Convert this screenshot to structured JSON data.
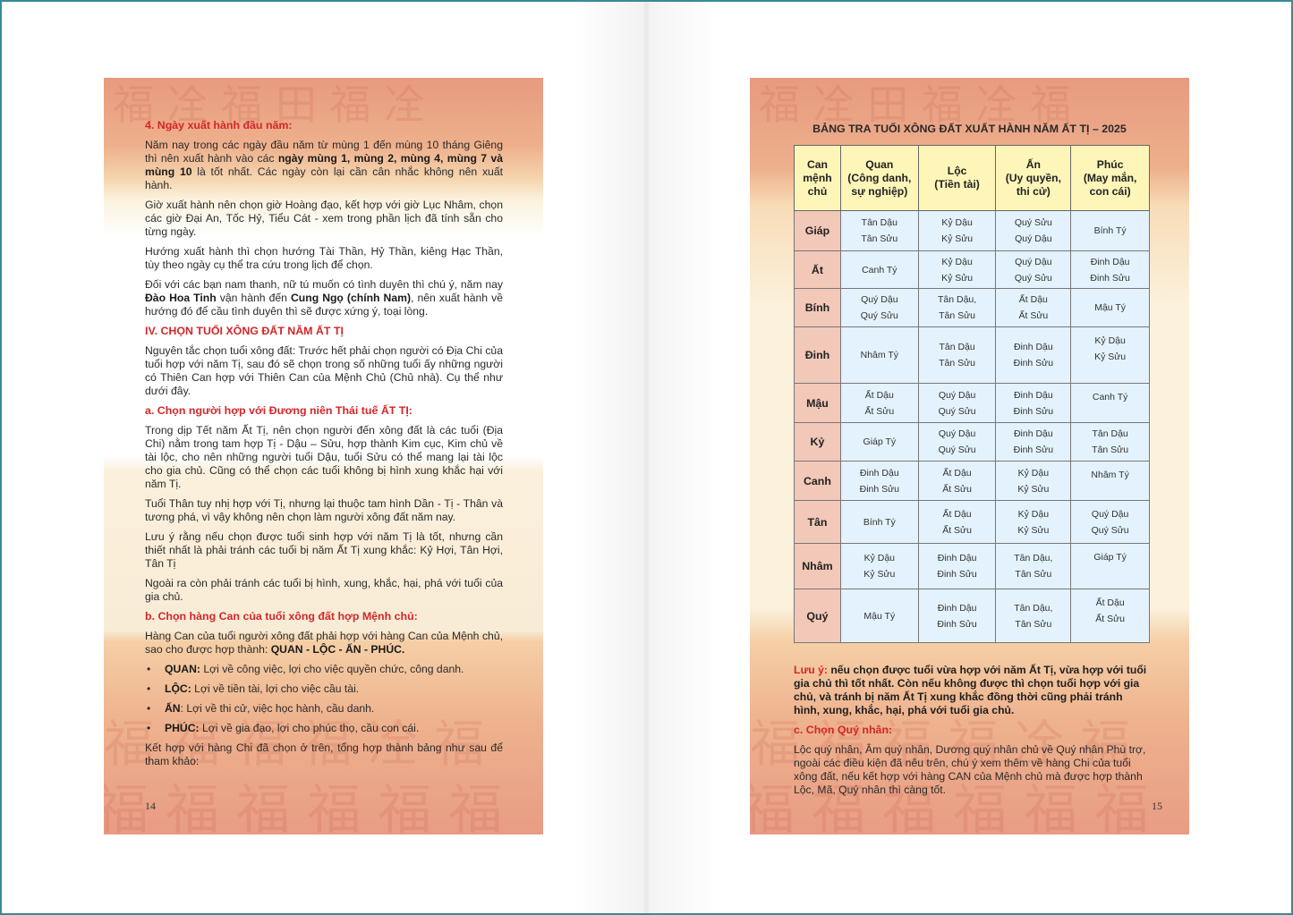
{
  "left_page": {
    "page_number": "14",
    "h4": "4. Ngày xuất hành đầu năm:",
    "p1a": "Năm nay trong các ngày đầu năm từ mùng 1 đến mùng 10 tháng Giêng thì nên xuất hành vào các ",
    "p1b": "ngày mùng 1, mùng 2, mùng 4, mùng 7 và mùng 10",
    "p1c": " là tốt nhất. Các ngày còn lại cần cân nhắc không nên xuất hành.",
    "p2": "Giờ xuất hành nên chọn giờ Hoàng đạo, kết hợp với giờ Lục Nhâm, chọn các giờ Đại An, Tốc Hỷ, Tiểu Cát - xem trong phần lịch đã tính sẵn cho từng ngày.",
    "p3": "Hướng xuất hành thì chọn hướng Tài Thần, Hỷ Thần, kiêng Hạc Thần, tùy theo ngày cụ thể tra cứu trong lịch để chọn.",
    "p4a": "Đối với các bạn nam thanh, nữ tú muốn có tình duyên thì chú ý, năm nay ",
    "p4b": "Đào Hoa Tinh",
    "p4c": " vận hành đến ",
    "p4d": "Cung Ngọ (chính Nam)",
    "p4e": ", nên xuất hành về hướng đó để cầu tình duyên thì sẽ được xứng ý, toại lòng.",
    "hIV": "IV. CHỌN TUỔI XÔNG ĐẤT NĂM ẤT TỊ",
    "p5": "Nguyên tắc chọn tuổi xông đất: Trước hết phải chọn người có Địa Chi của tuổi hợp với năm Tị, sau đó sẽ chọn trong số những tuổi ấy những người có Thiên Can hợp với Thiên Can của Mệnh Chủ (Chủ nhà). Cụ thể như dưới đây.",
    "ha": "a. Chọn người hợp với Đương niên Thái tuế ẤT TỊ:",
    "p6": "Trong dịp Tết năm Ất Tị, nên chọn người đến xông đất là các tuổi (Địa Chi) nằm trong tam hợp Tị - Dậu – Sửu, hợp thành Kim cục, Kim chủ về tài lộc, cho nên những người tuổi Dậu, tuổi Sửu có thể mang lại tài lộc cho gia chủ. Cũng có thể chọn các tuổi không bị hình xung khắc hại với năm Tị.",
    "p7": "Tuổi Thân tuy nhị hợp với Tị, nhưng lại thuộc tam hình Dần - Tị - Thân và tương phá, vì vậy không nên chọn làm người xông đất năm nay.",
    "p8": "Lưu ý rằng nếu chọn được tuổi sinh hợp với năm Tị là tốt, nhưng cần thiết nhất là phải tránh các tuổi bị năm Ất Tị xung khắc: Kỷ Hợi, Tân Hợi, Tân Tị",
    "p9": "Ngoài ra còn phải tránh các tuổi bị hình, xung, khắc, hại, phá với tuổi của gia chủ.",
    "hb": "b. Chọn hàng Can của tuổi xông đất hợp Mệnh chủ:",
    "p10a": "Hàng Can của tuổi người xông đất phải hợp với hàng Can của Mệnh chủ, sao cho được hợp thành: ",
    "p10b": "QUAN - LỘC - ẤN - PHÚC.",
    "bullets": [
      {
        "term": "QUAN:",
        "text": " Lợi về công việc, lợi cho việc quyền chức, công danh."
      },
      {
        "term": "LỘC:",
        "text": " Lợi về tiền tài, lợi cho việc cầu tài."
      },
      {
        "term": "ẤN",
        "text": ": Lợi về thi cử, việc học hành, cầu danh."
      },
      {
        "term": "PHÚC:",
        "text": " Lợi về gia đạo, lợi cho phúc thọ, cầu con cái."
      }
    ],
    "p11": "Kết hợp với hàng Chi đã chọn ở trên, tổng hợp thành bảng như sau để tham khảo:"
  },
  "right_page": {
    "page_number": "15",
    "table_title": "BẢNG TRA TUỔI XÔNG ĐẤT XUẤT HÀNH NĂM ẤT TỊ – 2025",
    "headers": [
      [
        "Can",
        "mệnh",
        "chủ"
      ],
      [
        "Quan",
        "(Công danh,",
        "sự nghiệp)"
      ],
      [
        "Lộc",
        "(Tiền tài)"
      ],
      [
        "Ấn",
        "(Uy quyền,",
        "thi cử)"
      ],
      [
        "Phúc",
        "(May mắn,",
        "con cái)"
      ]
    ],
    "rows": [
      {
        "can": "Giáp",
        "cells": [
          [
            "Tân Dậu",
            "Tân Sửu"
          ],
          [
            "Kỷ Dậu",
            "Kỷ Sửu"
          ],
          [
            "Quý Sửu",
            "Quý Dậu"
          ],
          [
            "Bính Tý"
          ]
        ]
      },
      {
        "can": "Ất",
        "cells": [
          [
            "Canh Tý"
          ],
          [
            "Kỷ Dậu",
            "Kỷ Sửu"
          ],
          [
            "Quý Dậu",
            "Quý Sửu"
          ],
          [
            "Đinh Dậu",
            "Đinh Sửu"
          ]
        ]
      },
      {
        "can": "Bính",
        "cells": [
          [
            "Quý Dậu",
            "Quý Sửu"
          ],
          [
            "Tân Dậu,",
            "Tân Sửu"
          ],
          [
            "Ất Dậu",
            "Ất Sửu"
          ],
          [
            "Mậu Tý"
          ]
        ]
      },
      {
        "can": "Đinh",
        "cells": [
          [
            "Nhâm Tý"
          ],
          [
            "Tân Dậu",
            "Tân Sửu"
          ],
          [
            "Đinh Dậu",
            "Đinh Sửu"
          ],
          [
            "Kỷ Dậu",
            "Kỷ Sửu"
          ]
        ]
      },
      {
        "can": "Mậu",
        "cells": [
          [
            "Ất Dậu",
            "Ất Sửu"
          ],
          [
            "Quý Dậu",
            "Quý Sửu"
          ],
          [
            "Đinh Dậu",
            "Đinh Sửu"
          ],
          [
            "Canh Tý"
          ]
        ]
      },
      {
        "can": "Kỷ",
        "cells": [
          [
            "Giáp Tý"
          ],
          [
            "Quý Dậu",
            "Quý Sửu"
          ],
          [
            "Đinh Dậu",
            "Đinh Sửu"
          ],
          [
            "Tân Dậu",
            "Tân Sửu"
          ]
        ]
      },
      {
        "can": "Canh",
        "cells": [
          [
            "Đinh Dậu",
            "Đinh Sửu"
          ],
          [
            "Ất Dậu",
            "Ất Sửu"
          ],
          [
            "Kỷ Dậu",
            "Kỷ Sửu"
          ],
          [
            "Nhâm Tý"
          ]
        ]
      },
      {
        "can": "Tân",
        "cells": [
          [
            "Bính Tý"
          ],
          [
            "Ất Dậu",
            "Ất Sửu"
          ],
          [
            "Kỷ Dậu",
            "Kỷ Sửu"
          ],
          [
            "Quý Dậu",
            "Quý Sửu"
          ]
        ]
      },
      {
        "can": "Nhâm",
        "cells": [
          [
            "Kỷ Dậu",
            "Kỷ Sửu"
          ],
          [
            "Đinh Dậu",
            "Đinh Sửu"
          ],
          [
            "Tân Dậu,",
            "Tân Sửu"
          ],
          [
            "Giáp Tý"
          ]
        ]
      },
      {
        "can": "Quý",
        "cells": [
          [
            "Mậu Tý"
          ],
          [
            "Đinh Dậu",
            "Đinh Sửu"
          ],
          [
            "Tân Dậu,",
            "Tân Sửu"
          ],
          [
            "Ất Dậu",
            "Ất Sửu"
          ]
        ]
      }
    ],
    "note_label": "Lưu ý:",
    "note_text": " nếu chọn được tuổi vừa hợp với năm Ất Tị, vừa hợp với tuổi gia chủ thì tốt nhất. Còn nếu không được thì chọn tuổi hợp với gia chủ, và tránh bị năm Ất Tị xung khắc đồng thời cũng phải tránh hình, xung, khắc, hại, phá với tuổi gia chủ.",
    "hc": "c. Chọn Quý nhân:",
    "pc": "Lộc quý nhân, Âm quý nhân, Dương quý nhân chủ về Quý nhân Phù trợ, ngoài các điều kiện đã nêu trên, chú ý xem thêm về hàng Chi của tuổi xông đất, nếu kết hợp với hàng CAN của Mệnh chủ mà được hợp thành Lộc, Mã, Quý nhân thì càng tốt."
  },
  "colors": {
    "heading_red": "#d3262a",
    "header_yellow": "#fdf6b8",
    "cell_blue": "#e3f2fc",
    "can_pink": "#f2c8b8",
    "frame_teal": "#3a8a96"
  }
}
